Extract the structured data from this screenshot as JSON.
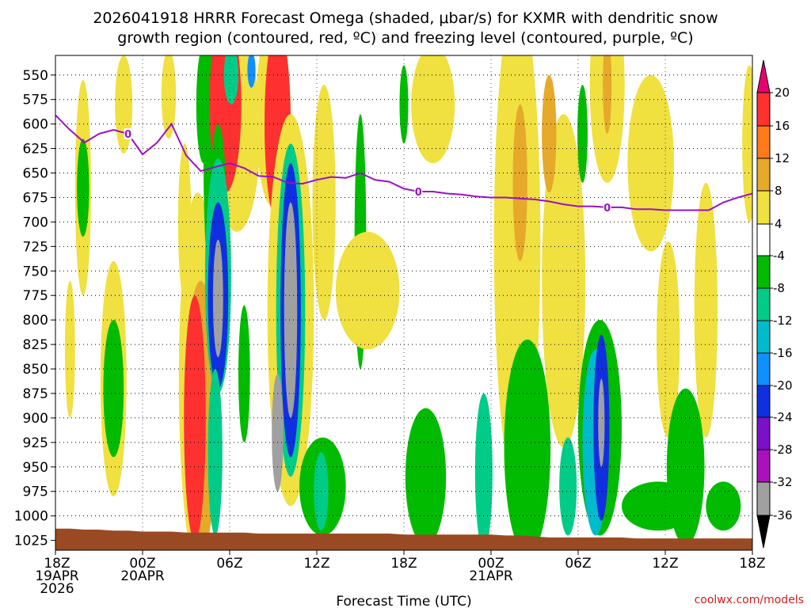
{
  "chart_data": {
    "type": "heatmap",
    "title_line1": "2026041918 HRRR Forecast Omega (shaded, μbar/s) for KXMR with dendritic snow",
    "title_line2": "growth region (contoured, red, ºC) and freezing level (contoured, purple, ºC)",
    "xlabel": "Forecast Time (UTC)",
    "credit": "coolwx.com/models",
    "x_range_hours": [
      0,
      48
    ],
    "y_range_hpa": [
      530,
      1035
    ],
    "x_ticks": [
      {
        "hour": 0,
        "lines": [
          "18Z",
          "19APR",
          "2026"
        ]
      },
      {
        "hour": 6,
        "lines": [
          "00Z",
          "20APR"
        ]
      },
      {
        "hour": 12,
        "lines": [
          "06Z"
        ]
      },
      {
        "hour": 18,
        "lines": [
          "12Z"
        ]
      },
      {
        "hour": 24,
        "lines": [
          "18Z"
        ]
      },
      {
        "hour": 30,
        "lines": [
          "00Z",
          "21APR"
        ]
      },
      {
        "hour": 36,
        "lines": [
          "06Z"
        ]
      },
      {
        "hour": 42,
        "lines": [
          "12Z"
        ]
      },
      {
        "hour": 48,
        "lines": [
          "18Z"
        ]
      }
    ],
    "y_ticks": [
      550,
      575,
      600,
      625,
      650,
      675,
      700,
      725,
      750,
      775,
      800,
      825,
      850,
      875,
      900,
      925,
      950,
      975,
      1000,
      1025
    ],
    "colorbar": {
      "labels": [
        "20",
        "16",
        "12",
        "8",
        "4",
        "-4",
        "-8",
        "-12",
        "-16",
        "-20",
        "-24",
        "-28",
        "-32",
        "-36"
      ],
      "levels": [
        20,
        16,
        12,
        8,
        4,
        -4,
        -8,
        -12,
        -16,
        -20,
        -24,
        -28,
        -32,
        -36
      ],
      "colors": [
        "#e8006e",
        "#ff3030",
        "#ff7a1a",
        "#e6a92a",
        "#f0e040",
        "#ffffff",
        "#00bb00",
        "#00cc88",
        "#00bbcc",
        "#1090ff",
        "#1030e0",
        "#7a10c8",
        "#aa10bb",
        "#a0a0a0",
        "#000000"
      ]
    },
    "freezing_level": {
      "label": "0",
      "color": "#9a10c8",
      "hours": [
        0,
        1,
        2,
        3,
        4,
        5,
        6,
        7,
        8,
        9,
        10,
        11,
        12,
        13,
        14,
        15,
        16,
        17,
        18,
        19,
        20,
        21,
        22,
        23,
        24,
        25,
        26,
        27,
        28,
        29,
        30,
        31,
        32,
        33,
        34,
        35,
        36,
        37,
        38,
        39,
        40,
        41,
        42,
        43,
        44,
        45,
        46,
        47,
        48
      ],
      "hpa": [
        591,
        606,
        619,
        610,
        606,
        610,
        631,
        619,
        600,
        632,
        648,
        644,
        640,
        645,
        653,
        654,
        660,
        661,
        657,
        654,
        655,
        650,
        657,
        659,
        666,
        669,
        669,
        671,
        672,
        674,
        675,
        675,
        676,
        677,
        679,
        682,
        684,
        684,
        685,
        685,
        687,
        687,
        688,
        688,
        688,
        688,
        680,
        675,
        671
      ]
    },
    "regions": [
      {
        "value": 6,
        "cx": 1.9,
        "cy": 665,
        "rx": 0.55,
        "ry": 110
      },
      {
        "value": -6,
        "cx": 1.9,
        "cy": 665,
        "rx": 0.42,
        "ry": 50
      },
      {
        "value": 6,
        "cx": 4.7,
        "cy": 580,
        "rx": 0.6,
        "ry": 50
      },
      {
        "value": 6,
        "cx": 7.8,
        "cy": 570,
        "rx": 0.5,
        "ry": 45
      },
      {
        "value": 6,
        "cx": 1.0,
        "cy": 830,
        "rx": 0.35,
        "ry": 70
      },
      {
        "value": 6,
        "cx": 4.0,
        "cy": 860,
        "rx": 0.9,
        "ry": 120
      },
      {
        "value": -6,
        "cx": 4.0,
        "cy": 870,
        "rx": 0.7,
        "ry": 70
      },
      {
        "value": 6,
        "cx": 8.9,
        "cy": 700,
        "rx": 0.45,
        "ry": 80
      },
      {
        "value": 6,
        "cx": 9.8,
        "cy": 860,
        "rx": 1.3,
        "ry": 190
      },
      {
        "value": -6,
        "cx": 10.2,
        "cy": 580,
        "rx": 0.5,
        "ry": 60
      },
      {
        "value": -6,
        "cx": 10.7,
        "cy": 640,
        "rx": 0.5,
        "ry": 120
      },
      {
        "value": 10,
        "cx": 10.0,
        "cy": 900,
        "rx": 1.1,
        "ry": 140
      },
      {
        "value": 18,
        "cx": 9.6,
        "cy": 900,
        "rx": 0.75,
        "ry": 125
      },
      {
        "value": 6,
        "cx": 12.5,
        "cy": 610,
        "rx": 1.6,
        "ry": 100
      },
      {
        "value": 18,
        "cx": 11.7,
        "cy": 580,
        "rx": 1.1,
        "ry": 90
      },
      {
        "value": -12,
        "cx": 12.1,
        "cy": 550,
        "rx": 0.5,
        "ry": 30
      },
      {
        "value": -20,
        "cx": 13.5,
        "cy": 545,
        "rx": 0.28,
        "ry": 18
      },
      {
        "value": -6,
        "cx": 11.2,
        "cy": 700,
        "rx": 0.6,
        "ry": 100
      },
      {
        "value": -10,
        "cx": 11.2,
        "cy": 755,
        "rx": 0.9,
        "ry": 120
      },
      {
        "value": -24,
        "cx": 11.2,
        "cy": 775,
        "rx": 0.7,
        "ry": 95
      },
      {
        "value": -36,
        "cx": 11.2,
        "cy": 778,
        "rx": 0.35,
        "ry": 60
      },
      {
        "value": -12,
        "cx": 11.0,
        "cy": 935,
        "rx": 0.5,
        "ry": 85
      },
      {
        "value": -6,
        "cx": 13.0,
        "cy": 855,
        "rx": 0.4,
        "ry": 70
      },
      {
        "value": 6,
        "cx": 15.0,
        "cy": 590,
        "rx": 1.2,
        "ry": 95
      },
      {
        "value": 18,
        "cx": 15.3,
        "cy": 600,
        "rx": 0.9,
        "ry": 100
      },
      {
        "value": 6,
        "cx": 16.2,
        "cy": 790,
        "rx": 1.6,
        "ry": 200
      },
      {
        "value": -10,
        "cx": 16.2,
        "cy": 790,
        "rx": 1.0,
        "ry": 170
      },
      {
        "value": -24,
        "cx": 16.2,
        "cy": 790,
        "rx": 0.7,
        "ry": 150
      },
      {
        "value": -36,
        "cx": 16.2,
        "cy": 790,
        "rx": 0.45,
        "ry": 110
      },
      {
        "value": -36,
        "cx": 15.3,
        "cy": 915,
        "rx": 0.4,
        "ry": 60
      },
      {
        "value": 6,
        "cx": 18.5,
        "cy": 680,
        "rx": 0.8,
        "ry": 120
      },
      {
        "value": -6,
        "cx": 21.0,
        "cy": 720,
        "rx": 0.4,
        "ry": 130
      },
      {
        "value": 6,
        "cx": 21.5,
        "cy": 770,
        "rx": 2.2,
        "ry": 60
      },
      {
        "value": -6,
        "cx": 18.4,
        "cy": 970,
        "rx": 1.6,
        "ry": 50
      },
      {
        "value": -12,
        "cx": 18.3,
        "cy": 975,
        "rx": 0.5,
        "ry": 40
      },
      {
        "value": -6,
        "cx": 25.5,
        "cy": 960,
        "rx": 1.4,
        "ry": 70
      },
      {
        "value": -6,
        "cx": 24.0,
        "cy": 580,
        "rx": 0.3,
        "ry": 40
      },
      {
        "value": 6,
        "cx": 26.0,
        "cy": 580,
        "rx": 1.5,
        "ry": 60
      },
      {
        "value": 6,
        "cx": 31.8,
        "cy": 720,
        "rx": 1.6,
        "ry": 250
      },
      {
        "value": 10,
        "cx": 32.0,
        "cy": 660,
        "rx": 0.5,
        "ry": 80
      },
      {
        "value": 6,
        "cx": 35.0,
        "cy": 760,
        "rx": 1.5,
        "ry": 170
      },
      {
        "value": 10,
        "cx": 34.0,
        "cy": 610,
        "rx": 0.5,
        "ry": 60
      },
      {
        "value": 6,
        "cx": 38.0,
        "cy": 560,
        "rx": 1.2,
        "ry": 100
      },
      {
        "value": 10,
        "cx": 38.0,
        "cy": 560,
        "rx": 0.3,
        "ry": 50
      },
      {
        "value": 6,
        "cx": 41.0,
        "cy": 640,
        "rx": 1.6,
        "ry": 90
      },
      {
        "value": -6,
        "cx": 36.3,
        "cy": 610,
        "rx": 0.35,
        "ry": 50
      },
      {
        "value": 6,
        "cx": 42.2,
        "cy": 820,
        "rx": 0.8,
        "ry": 100
      },
      {
        "value": 6,
        "cx": 44.8,
        "cy": 790,
        "rx": 0.8,
        "ry": 130
      },
      {
        "value": -6,
        "cx": 32.5,
        "cy": 930,
        "rx": 1.6,
        "ry": 110
      },
      {
        "value": -12,
        "cx": 29.5,
        "cy": 955,
        "rx": 0.6,
        "ry": 80
      },
      {
        "value": -6,
        "cx": 37.5,
        "cy": 910,
        "rx": 1.5,
        "ry": 110
      },
      {
        "value": -14,
        "cx": 37.2,
        "cy": 925,
        "rx": 0.9,
        "ry": 95
      },
      {
        "value": -24,
        "cx": 37.6,
        "cy": 910,
        "rx": 0.55,
        "ry": 95
      },
      {
        "value": -36,
        "cx": 37.6,
        "cy": 905,
        "rx": 0.22,
        "ry": 45
      },
      {
        "value": -12,
        "cx": 35.3,
        "cy": 970,
        "rx": 0.6,
        "ry": 50
      },
      {
        "value": -6,
        "cx": 43.4,
        "cy": 950,
        "rx": 1.3,
        "ry": 80
      },
      {
        "value": -6,
        "cx": 46.0,
        "cy": 990,
        "rx": 1.2,
        "ry": 25
      },
      {
        "value": 6,
        "cx": 47.8,
        "cy": 620,
        "rx": 0.5,
        "ry": 80
      },
      {
        "value": -6,
        "cx": 41.5,
        "cy": 990,
        "rx": 2.5,
        "ry": 25
      }
    ],
    "ground_hpa": [
      1013,
      1013,
      1014,
      1014,
      1015,
      1015,
      1016,
      1016,
      1016,
      1017,
      1017,
      1017,
      1017,
      1017,
      1018,
      1018,
      1018,
      1018,
      1018,
      1018,
      1018,
      1018,
      1018,
      1018,
      1019,
      1019,
      1019,
      1019,
      1019,
      1019,
      1019,
      1020,
      1020,
      1021,
      1022,
      1022,
      1022,
      1022,
      1022,
      1022,
      1023,
      1023,
      1023,
      1023,
      1023,
      1023,
      1023,
      1023,
      1023
    ]
  }
}
